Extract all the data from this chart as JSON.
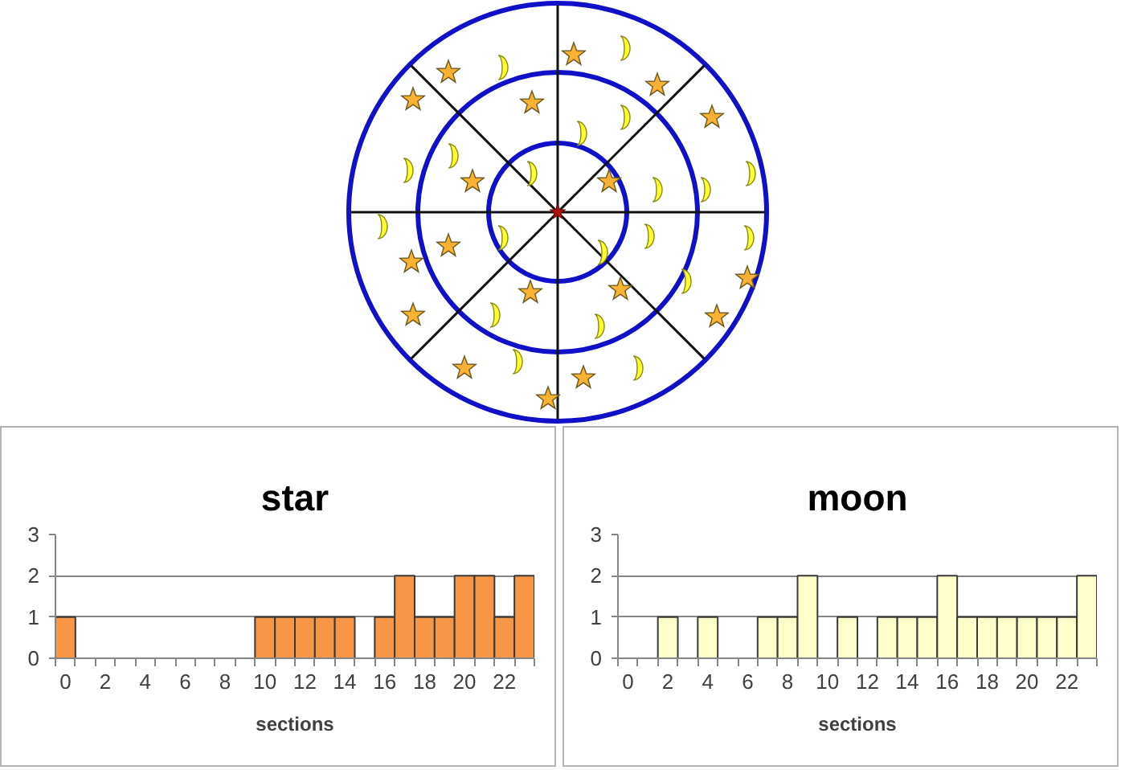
{
  "chart_data": [
    {
      "type": "bar",
      "title": "star",
      "xlabel": "sections",
      "categories": [
        "0",
        null,
        "2",
        null,
        "4",
        null,
        "6",
        null,
        "8",
        null,
        "10",
        null,
        "12",
        null,
        "14",
        null,
        "16",
        null,
        "18",
        null,
        "20",
        null,
        "22",
        null
      ],
      "values": [
        1,
        0,
        0,
        0,
        0,
        0,
        0,
        0,
        0,
        0,
        1,
        1,
        1,
        1,
        1,
        0,
        1,
        2,
        1,
        1,
        2,
        2,
        1,
        2
      ],
      "color": "#f79646",
      "ylim": [
        0,
        3
      ],
      "yticks": [
        0,
        1,
        2,
        3
      ],
      "grid": "y"
    },
    {
      "type": "bar",
      "title": "moon",
      "xlabel": "sections",
      "categories": [
        "0",
        null,
        "2",
        null,
        "4",
        null,
        "6",
        null,
        "8",
        null,
        "10",
        null,
        "12",
        null,
        "14",
        null,
        "16",
        null,
        "18",
        null,
        "20",
        null,
        "22",
        null
      ],
      "values": [
        0,
        0,
        1,
        0,
        1,
        0,
        0,
        1,
        1,
        2,
        0,
        1,
        0,
        1,
        1,
        1,
        2,
        1,
        1,
        1,
        1,
        1,
        1,
        2
      ],
      "color": "#ffffcc",
      "ylim": [
        0,
        3
      ],
      "yticks": [
        0,
        1,
        2,
        3
      ],
      "grid": "y"
    }
  ]
}
